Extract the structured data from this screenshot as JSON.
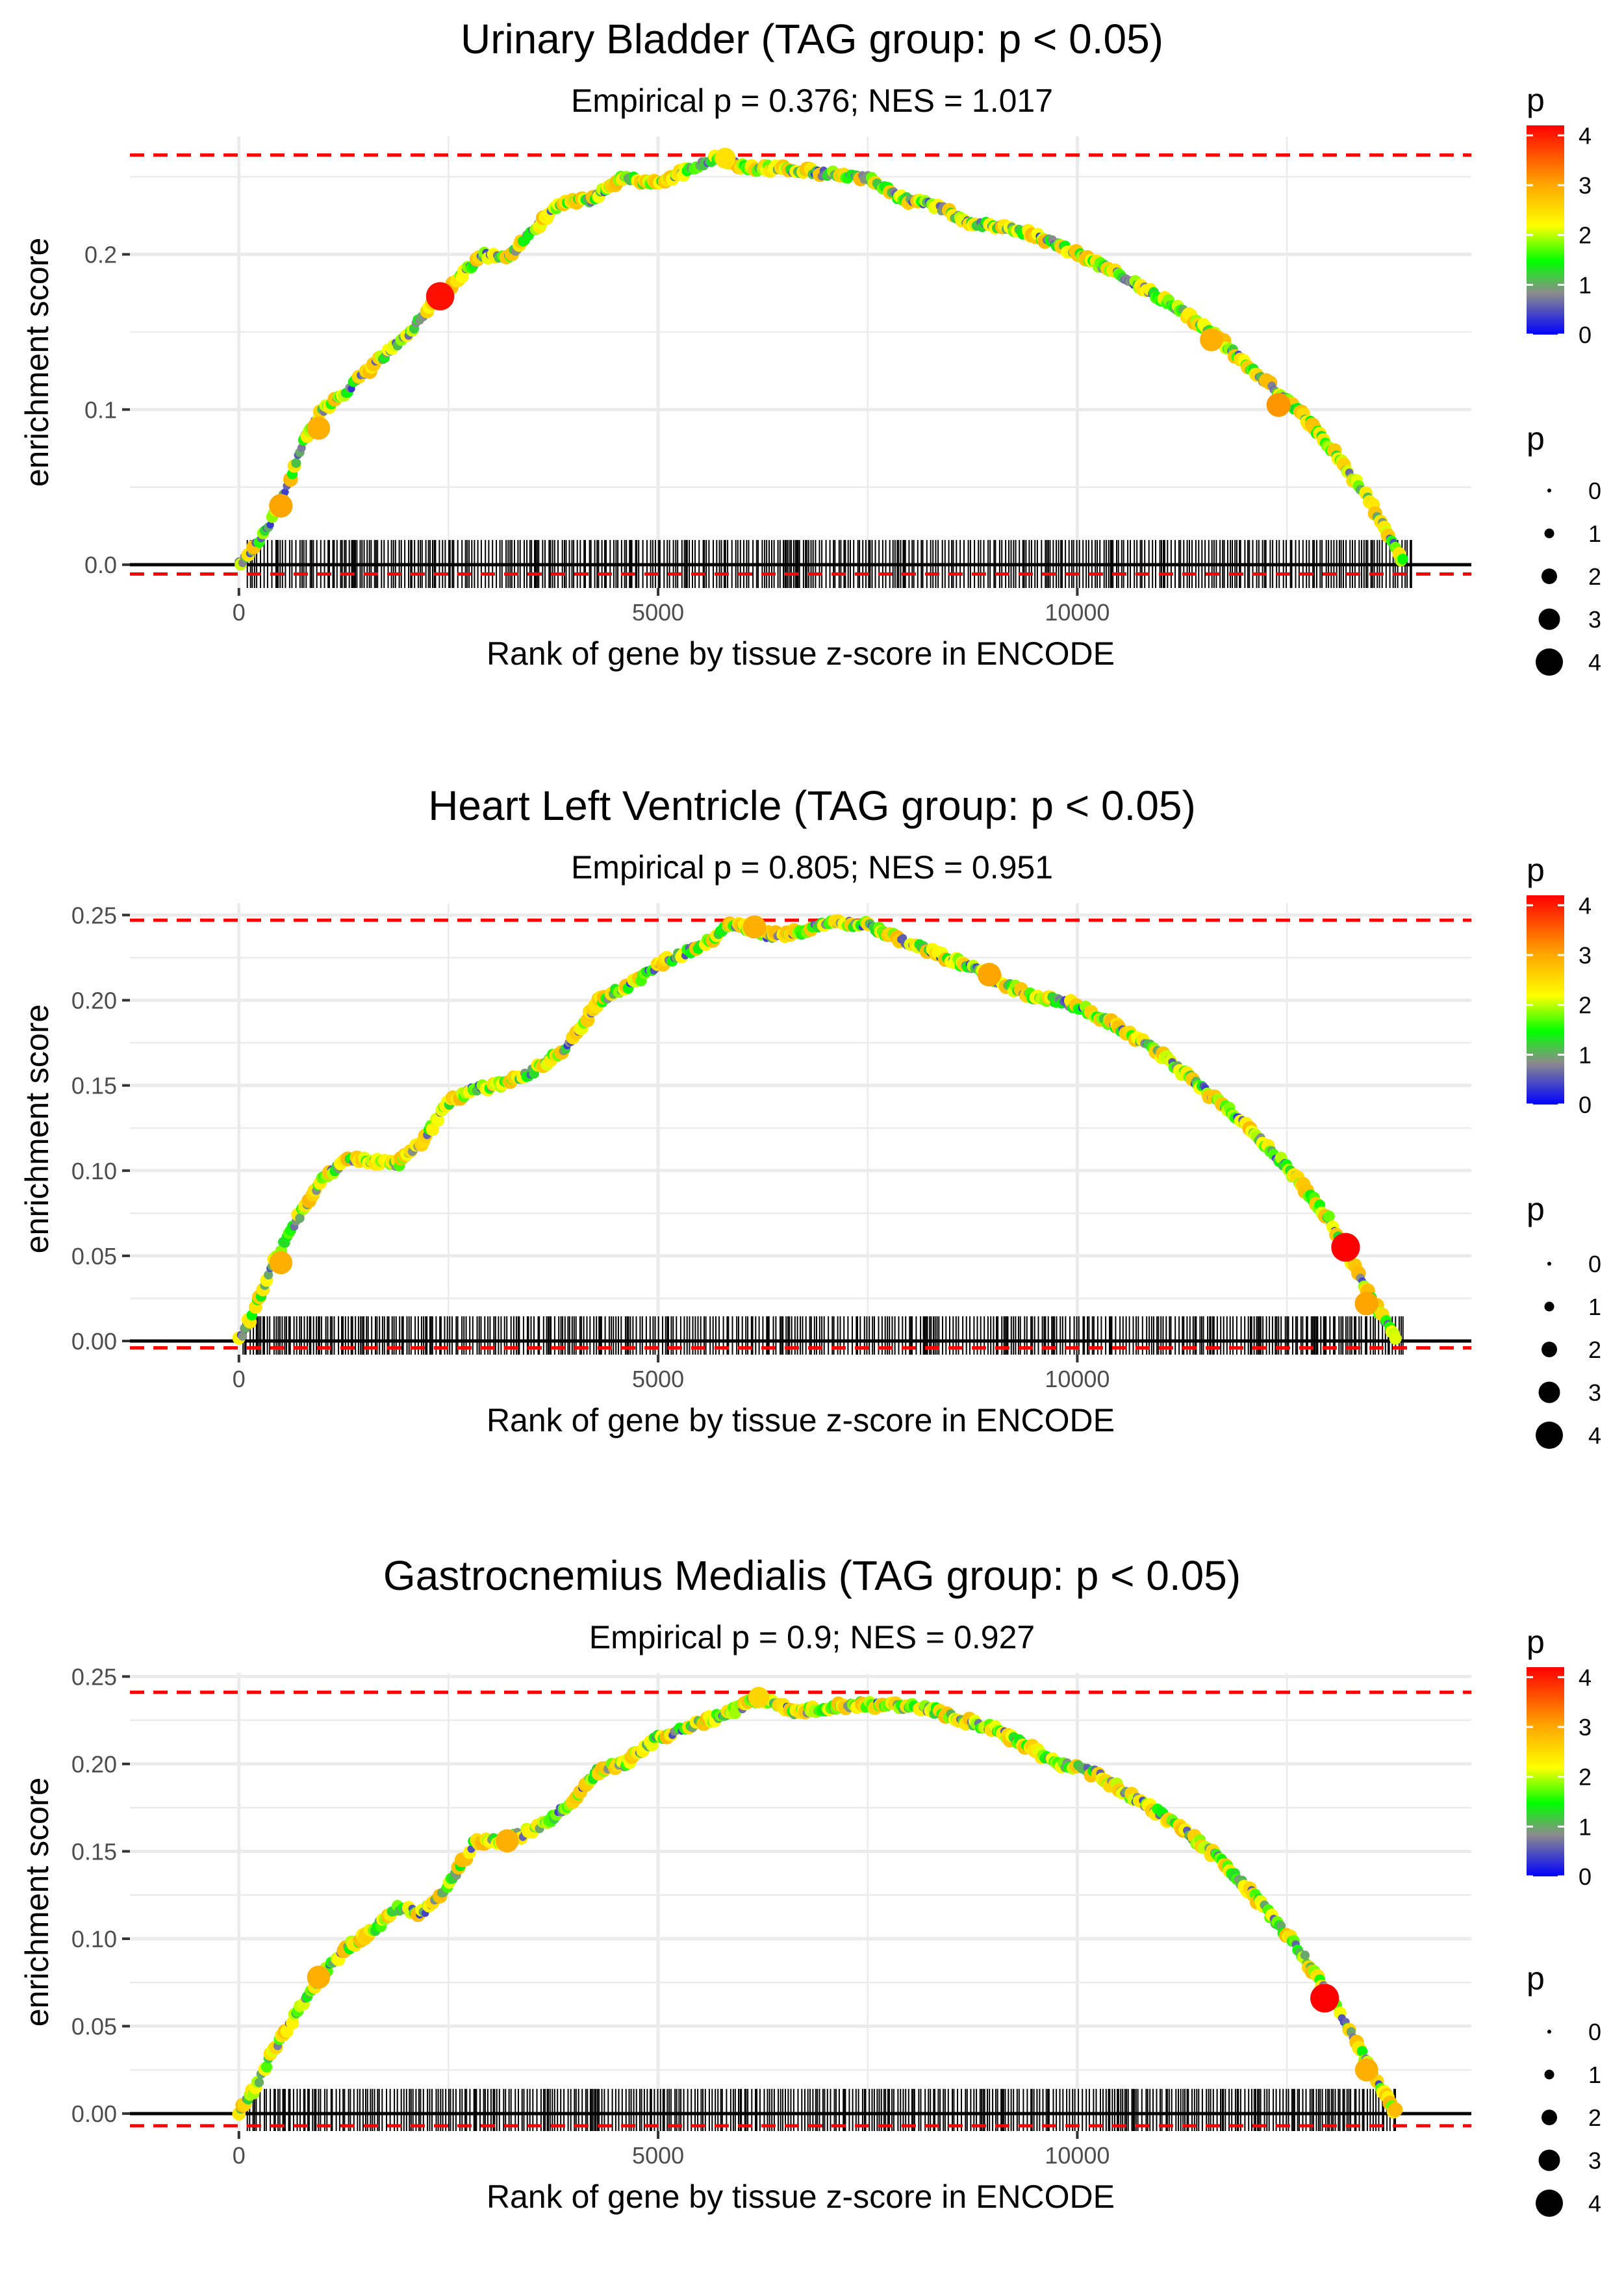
{
  "chart_data": [
    {
      "type": "line",
      "title": "Urinary Bladder (TAG group: p < 0.05)",
      "subtitle": "Empirical p = 0.376; NES = 1.017",
      "xlabel": "Rank of gene by tissue z-score in ENCODE",
      "ylabel": "enrichment score",
      "xlim": [
        -1300,
        14700
      ],
      "ylim": [
        -0.015,
        0.276
      ],
      "xticks": [
        0,
        5000,
        10000
      ],
      "xtick_labels": [
        "0",
        "5000",
        "10000"
      ],
      "yticks": [
        0.0,
        0.1,
        0.2
      ],
      "ytick_labels": [
        "0.0",
        "0.1",
        "0.2"
      ],
      "max_es_line": 0.264,
      "min_es_line": -0.006,
      "rug_range": [
        100,
        14000
      ],
      "es_curve": {
        "x": [
          0,
          300,
          500,
          800,
          1000,
          1300,
          1600,
          2000,
          2300,
          2600,
          2900,
          3200,
          3500,
          3800,
          4200,
          4600,
          5000,
          5300,
          5700,
          6100,
          6500,
          7000,
          7500,
          7900,
          8300,
          8700,
          9100,
          9500,
          10000,
          10400,
          10800,
          11300,
          11700,
          12200,
          12700,
          13100,
          13500,
          13900
        ],
        "y": [
          0.0,
          0.02,
          0.04,
          0.083,
          0.1,
          0.113,
          0.128,
          0.148,
          0.168,
          0.183,
          0.2,
          0.198,
          0.215,
          0.232,
          0.235,
          0.25,
          0.245,
          0.253,
          0.262,
          0.256,
          0.255,
          0.252,
          0.25,
          0.236,
          0.232,
          0.22,
          0.218,
          0.213,
          0.2,
          0.19,
          0.178,
          0.162,
          0.145,
          0.12,
          0.096,
          0.07,
          0.04,
          0.0
        ]
      },
      "highlight_points": [
        {
          "x": 2400,
          "y": 0.173,
          "p": 4.1
        },
        {
          "x": 500,
          "y": 0.038,
          "p": 3.1
        },
        {
          "x": 950,
          "y": 0.088,
          "p": 3.0
        },
        {
          "x": 11600,
          "y": 0.145,
          "p": 3.0
        },
        {
          "x": 12400,
          "y": 0.103,
          "p": 3.2
        },
        {
          "x": 5800,
          "y": 0.262,
          "p": 2.5
        }
      ],
      "legend_color": {
        "title": "p",
        "ticks": [
          "0",
          "1",
          "2",
          "3",
          "4"
        ],
        "range": [
          0,
          4.2
        ]
      },
      "legend_size": {
        "title": "p",
        "labels": [
          "0",
          "1",
          "2",
          "3",
          "4"
        ]
      }
    },
    {
      "type": "line",
      "title": "Heart Left Ventricle (TAG group: p < 0.05)",
      "subtitle": "Empirical p = 0.805; NES = 0.951",
      "xlabel": "Rank of gene by tissue z-score in ENCODE",
      "ylabel": "enrichment score",
      "xlim": [
        -1300,
        14700
      ],
      "ylim": [
        -0.008,
        0.257
      ],
      "xticks": [
        0,
        5000,
        10000
      ],
      "xtick_labels": [
        "0",
        "5000",
        "10000"
      ],
      "yticks": [
        0.0,
        0.05,
        0.1,
        0.15,
        0.2,
        0.25
      ],
      "ytick_labels": [
        "0.00",
        "0.05",
        "0.10",
        "0.15",
        "0.20",
        "0.25"
      ],
      "max_es_line": 0.247,
      "min_es_line": -0.004,
      "rug_range": [
        50,
        13900
      ],
      "es_curve": {
        "x": [
          0,
          200,
          400,
          700,
          1000,
          1300,
          1600,
          1900,
          2200,
          2500,
          2800,
          3100,
          3500,
          3900,
          4300,
          4700,
          5100,
          5500,
          5900,
          6300,
          6700,
          7100,
          7500,
          7900,
          8300,
          8700,
          9100,
          9500,
          10000,
          10500,
          11000,
          11500,
          12000,
          12500,
          13000,
          13400,
          13800
        ],
        "y": [
          0.0,
          0.02,
          0.045,
          0.072,
          0.095,
          0.107,
          0.106,
          0.104,
          0.118,
          0.14,
          0.148,
          0.15,
          0.158,
          0.172,
          0.2,
          0.21,
          0.223,
          0.232,
          0.245,
          0.238,
          0.24,
          0.246,
          0.244,
          0.235,
          0.228,
          0.22,
          0.21,
          0.202,
          0.197,
          0.184,
          0.168,
          0.148,
          0.128,
          0.102,
          0.072,
          0.035,
          0.0
        ]
      },
      "highlight_points": [
        {
          "x": 13200,
          "y": 0.055,
          "p": 4.2
        },
        {
          "x": 6150,
          "y": 0.243,
          "p": 3.0
        },
        {
          "x": 8950,
          "y": 0.215,
          "p": 3.1
        },
        {
          "x": 13450,
          "y": 0.022,
          "p": 3.1
        },
        {
          "x": 500,
          "y": 0.046,
          "p": 3.0
        }
      ],
      "legend_color": {
        "title": "p",
        "ticks": [
          "0",
          "1",
          "2",
          "3",
          "4"
        ],
        "range": [
          0,
          4.2
        ]
      },
      "legend_size": {
        "title": "p",
        "labels": [
          "0",
          "1",
          "2",
          "3",
          "4"
        ]
      }
    },
    {
      "type": "line",
      "title": "Gastrocnemius Medialis (TAG group: p < 0.05)",
      "subtitle": "Empirical p = 0.9; NES = 0.927",
      "xlabel": "Rank of gene by tissue z-score in ENCODE",
      "ylabel": "enrichment score",
      "xlim": [
        -1300,
        14700
      ],
      "ylim": [
        -0.01,
        0.252
      ],
      "xticks": [
        0,
        5000,
        10000
      ],
      "xtick_labels": [
        "0",
        "5000",
        "10000"
      ],
      "yticks": [
        0.0,
        0.05,
        0.1,
        0.15,
        0.2,
        0.25
      ],
      "ytick_labels": [
        "0.00",
        "0.05",
        "0.10",
        "0.15",
        "0.20",
        "0.25"
      ],
      "max_es_line": 0.241,
      "min_es_line": -0.007,
      "rug_range": [
        100,
        13800
      ],
      "es_curve": {
        "x": [
          0,
          200,
          400,
          700,
          1000,
          1300,
          1600,
          1900,
          2200,
          2500,
          2800,
          3100,
          3400,
          3700,
          4000,
          4300,
          4600,
          5000,
          5400,
          5800,
          6200,
          6600,
          7000,
          7400,
          7800,
          8200,
          8600,
          9000,
          9400,
          9800,
          10200,
          10700,
          11200,
          11700,
          12200,
          12700,
          13100,
          13500,
          13800
        ],
        "y": [
          0.0,
          0.015,
          0.035,
          0.058,
          0.08,
          0.095,
          0.105,
          0.118,
          0.115,
          0.13,
          0.155,
          0.156,
          0.16,
          0.168,
          0.18,
          0.197,
          0.2,
          0.215,
          0.222,
          0.228,
          0.238,
          0.23,
          0.232,
          0.234,
          0.233,
          0.232,
          0.226,
          0.22,
          0.21,
          0.2,
          0.195,
          0.18,
          0.165,
          0.145,
          0.12,
          0.09,
          0.06,
          0.025,
          0.0
        ]
      },
      "highlight_points": [
        {
          "x": 12950,
          "y": 0.066,
          "p": 4.2
        },
        {
          "x": 950,
          "y": 0.078,
          "p": 3.0
        },
        {
          "x": 3200,
          "y": 0.156,
          "p": 3.0
        },
        {
          "x": 6200,
          "y": 0.238,
          "p": 2.6
        },
        {
          "x": 13450,
          "y": 0.025,
          "p": 3.0
        }
      ],
      "legend_color": {
        "title": "p",
        "ticks": [
          "0",
          "1",
          "2",
          "3",
          "4"
        ],
        "range": [
          0,
          4.2
        ]
      },
      "legend_size": {
        "title": "p",
        "labels": [
          "0",
          "1",
          "2",
          "3",
          "4"
        ]
      }
    }
  ],
  "colors": {
    "panel_bg": "#ffffff",
    "grid": "#ebebeb",
    "hline_dashed": "#ff0000",
    "zero_line": "#000000",
    "rug": "#000000",
    "gradient_stops": [
      "#0000ff",
      "#8c8c8c",
      "#00ff00",
      "#ffff00",
      "#ffa500",
      "#ff0000"
    ]
  }
}
